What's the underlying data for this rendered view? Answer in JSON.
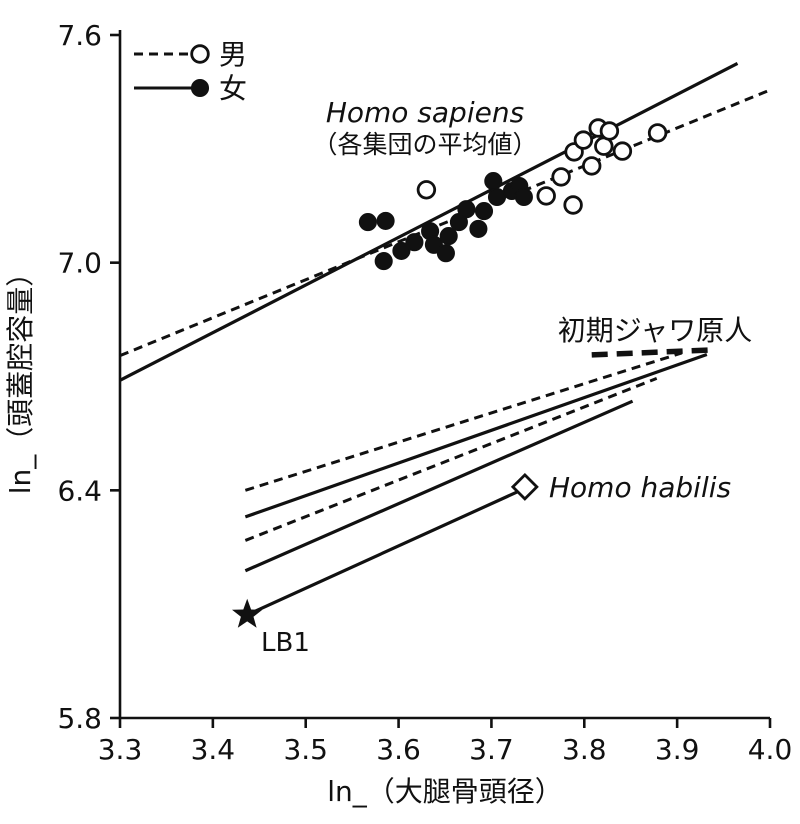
{
  "figure": {
    "background": "#ffffff",
    "ink_color": "#111111",
    "legend": {
      "items": [
        {
          "label": "男",
          "line": "dashed",
          "marker": "open-circle"
        },
        {
          "label": "女",
          "line": "solid",
          "marker": "filled-circle"
        }
      ]
    },
    "annotations": {
      "homo_sapiens_title": "Homo sapiens",
      "homo_sapiens_sub": "（各集団の平均値）",
      "java_label": "初期ジャワ原人",
      "habilis_label": "Homo habilis",
      "lb1_label": "LB1"
    }
  },
  "chart_data": {
    "type": "scatter",
    "title": "",
    "xlabel": "ln_（大腿骨頭径）",
    "ylabel": "ln_（頭蓋腔容量）",
    "xlim": [
      3.3,
      4.0
    ],
    "ylim": [
      5.8,
      7.6
    ],
    "x_ticks": [
      3.3,
      3.4,
      3.5,
      3.6,
      3.7,
      3.8,
      3.9,
      4.0
    ],
    "y_ticks": [
      5.8,
      6.4,
      7.0,
      7.6
    ],
    "grid": false,
    "legend_position": "top-left",
    "series": [
      {
        "name": "男（Homo sapiens 各集団の平均値）",
        "marker": "open-circle",
        "points": [
          [
            3.63,
            7.192
          ],
          [
            3.759,
            7.176
          ],
          [
            3.775,
            7.226
          ],
          [
            3.788,
            7.152
          ],
          [
            3.789,
            7.292
          ],
          [
            3.799,
            7.323
          ],
          [
            3.808,
            7.255
          ],
          [
            3.815,
            7.355
          ],
          [
            3.821,
            7.307
          ],
          [
            3.827,
            7.347
          ],
          [
            3.841,
            7.294
          ],
          [
            3.879,
            7.342
          ]
        ]
      },
      {
        "name": "女（Homo sapiens 各集団の平均値）",
        "marker": "filled-circle",
        "points": [
          [
            3.567,
            7.107
          ],
          [
            3.586,
            7.11
          ],
          [
            3.584,
            7.004
          ],
          [
            3.603,
            7.031
          ],
          [
            3.617,
            7.054
          ],
          [
            3.634,
            7.083
          ],
          [
            3.638,
            7.047
          ],
          [
            3.651,
            7.025
          ],
          [
            3.654,
            7.07
          ],
          [
            3.665,
            7.107
          ],
          [
            3.673,
            7.141
          ],
          [
            3.686,
            7.089
          ],
          [
            3.692,
            7.136
          ],
          [
            3.702,
            7.215
          ],
          [
            3.706,
            7.173
          ],
          [
            3.722,
            7.189
          ],
          [
            3.73,
            7.202
          ],
          [
            3.735,
            7.173
          ]
        ]
      }
    ],
    "lines": [
      {
        "name": "homo-sapiens-male-regression",
        "style": "dashed",
        "width": 3,
        "x1": 3.3,
        "y1": 6.755,
        "x2": 4.0,
        "y2": 7.455
      },
      {
        "name": "homo-sapiens-female-regression",
        "style": "solid",
        "width": 3.2,
        "x1": 3.3,
        "y1": 6.69,
        "x2": 3.965,
        "y2": 7.525
      },
      {
        "name": "projection-male-upper",
        "style": "dashed",
        "width": 3,
        "x1": 3.435,
        "y1": 6.4,
        "x2": 3.905,
        "y2": 6.762
      },
      {
        "name": "projection-female-upper",
        "style": "solid",
        "width": 3.2,
        "x1": 3.435,
        "y1": 6.33,
        "x2": 3.932,
        "y2": 6.758
      },
      {
        "name": "projection-male-lower",
        "style": "dashed",
        "width": 3,
        "x1": 3.435,
        "y1": 6.268,
        "x2": 3.878,
        "y2": 6.695
      },
      {
        "name": "projection-female-lower",
        "style": "solid",
        "width": 3.2,
        "x1": 3.435,
        "y1": 6.188,
        "x2": 3.852,
        "y2": 6.635
      },
      {
        "name": "lb1-projection",
        "style": "solid",
        "width": 3.2,
        "x1": 3.437,
        "y1": 6.072,
        "x2": 3.728,
        "y2": 6.396
      },
      {
        "name": "early-java-range",
        "style": "heavy-dashed",
        "width": 5.5,
        "x1": 3.808,
        "y1": 6.757,
        "x2": 3.938,
        "y2": 6.77
      }
    ],
    "special_points": [
      {
        "name": "homo-habilis",
        "marker": "open-diamond",
        "x": 3.736,
        "y": 6.409
      },
      {
        "name": "lb1",
        "marker": "filled-star",
        "x": 3.437,
        "y": 6.072
      }
    ]
  }
}
